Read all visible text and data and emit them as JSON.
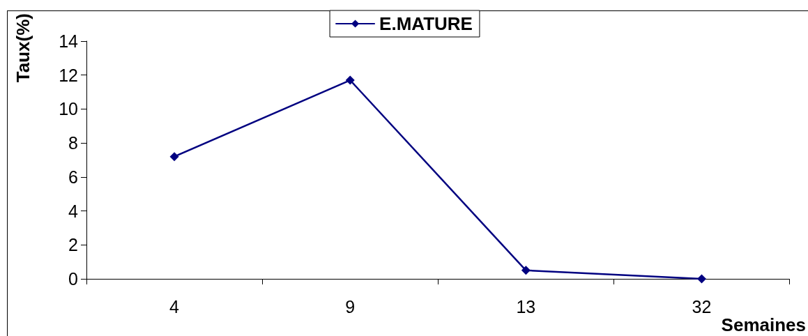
{
  "chart_data": {
    "type": "line",
    "categories": [
      "4",
      "9",
      "13",
      "32"
    ],
    "series": [
      {
        "name": "E.MATURE",
        "color": "#000080",
        "values": [
          7.2,
          11.7,
          0.5,
          0
        ]
      }
    ],
    "ylim": [
      0,
      14
    ],
    "yticks": [
      0,
      2,
      4,
      6,
      8,
      10,
      12,
      14
    ],
    "xlabel": "Semaines",
    "ylabel": "Taux(%)",
    "legend": "top",
    "grid": false,
    "marker": "diamond",
    "line_style": "solid"
  }
}
